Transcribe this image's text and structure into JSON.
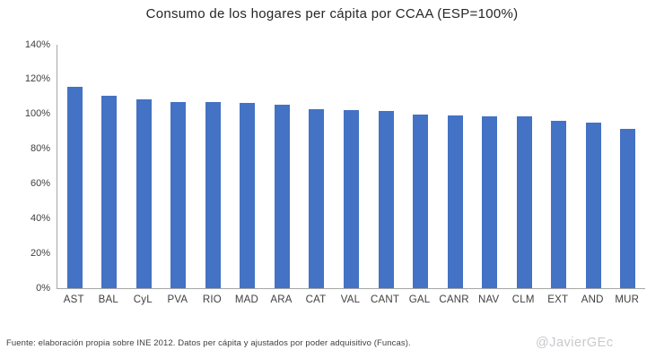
{
  "title": "Consumo de los hogares per cápita por CCAA (ESP=100%)",
  "footer": {
    "source": "Fuente: elaboración propia sobre INE 2012. Datos per cápita y ajustados por poder adquisitivo (Funcas).",
    "watermark": "@JavierGEc"
  },
  "colors": {
    "bar": "#4472C4",
    "axis": "#A6A6A6",
    "label": "#3F3F3F",
    "title": "#262626",
    "watermark": "#C9C9CE"
  },
  "chart_data": {
    "type": "bar",
    "title": "Consumo de los hogares per cápita por CCAA (ESP=100%)",
    "categories": [
      "AST",
      "BAL",
      "CyL",
      "PVA",
      "RIO",
      "MAD",
      "ARA",
      "CAT",
      "VAL",
      "CANT",
      "GAL",
      "CANR",
      "NAV",
      "CLM",
      "EXT",
      "AND",
      "MUR"
    ],
    "values": [
      116,
      110.5,
      108.5,
      107,
      107,
      106.5,
      105.5,
      103,
      102.5,
      102,
      100,
      99.5,
      99,
      99,
      96.5,
      95,
      91.5
    ],
    "xlabel": "",
    "ylabel": "",
    "ylim": [
      0,
      140
    ],
    "ytick_step": 20,
    "ytick_suffix": "%",
    "grid": false,
    "legend": false
  }
}
